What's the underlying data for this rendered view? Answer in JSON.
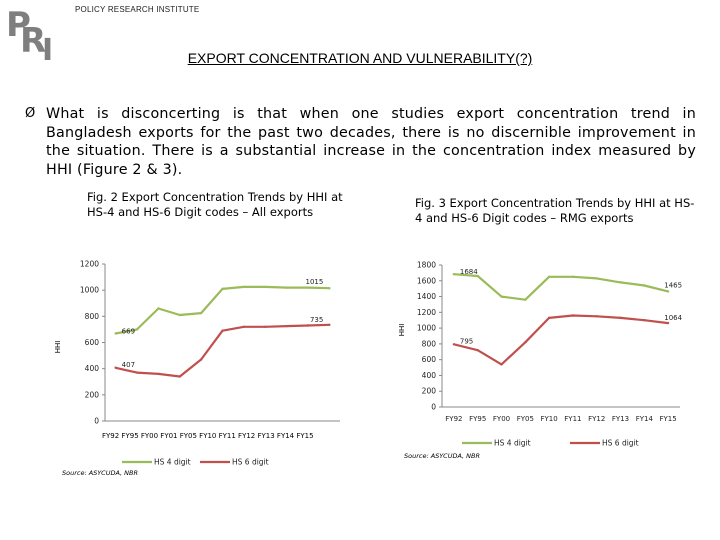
{
  "header": {
    "org_name": "POLICY RESEARCH INSTITUTE",
    "logo_text": "PRI",
    "slide_title": "EXPORT CONCENTRATION AND VULNERABILITY(?)"
  },
  "body": {
    "bullet_symbol": "Ø",
    "paragraph": "What is disconcerting is that when one studies export concentration trend in Bangladesh exports for the past two decades, there is no discernible improvement in the situation. There is a substantial increase in the concentration index measured by HHI (Figure 2 & 3)."
  },
  "colors": {
    "hs4": "#9bbb59",
    "hs6": "#c0504d",
    "axis": "#888888"
  },
  "chart_data": [
    {
      "type": "line",
      "caption": "Fig. 2 Export Concentration Trends by HHI at HS-4 and HS-6 Digit codes – All exports",
      "categories": [
        "FY92",
        "FY95",
        "FY00",
        "FY01",
        "FY05",
        "FY10",
        "FY11",
        "FY12",
        "FY13",
        "FY14",
        "FY15"
      ],
      "ylabel": "HHI",
      "ylim": [
        0,
        1200
      ],
      "yticks": [
        0,
        200,
        400,
        600,
        800,
        1000,
        1200
      ],
      "series": [
        {
          "name": "HS 4 digit",
          "values": [
            669,
            700,
            860,
            810,
            825,
            1010,
            1025,
            1025,
            1020,
            1020,
            1015
          ]
        },
        {
          "name": "HS 6 digit",
          "values": [
            407,
            370,
            360,
            340,
            470,
            690,
            720,
            720,
            725,
            730,
            735
          ]
        }
      ],
      "labels": [
        {
          "text": "669",
          "series": 0,
          "index": 0
        },
        {
          "text": "1015",
          "series": 0,
          "index": 10
        },
        {
          "text": "407",
          "series": 1,
          "index": 0
        },
        {
          "text": "735",
          "series": 1,
          "index": 10
        }
      ],
      "tick_label_text": "FY92 FY95 FY00 FY01 FY05 FY10 FY11 FY12 FY13 FY14 FY15",
      "source": "Source: ASYCUDA, NBR"
    },
    {
      "type": "line",
      "caption": "Fig. 3 Export Concentration Trends by HHI at HS-4 and HS-6 Digit codes – RMG exports",
      "categories": [
        "FY92",
        "FY95",
        "FY00",
        "FY05",
        "FY10",
        "FY11",
        "FY12",
        "FY13",
        "FY14",
        "FY15"
      ],
      "ylabel": "HHI",
      "ylim": [
        0,
        1800
      ],
      "yticks": [
        0,
        200,
        400,
        600,
        800,
        1000,
        1200,
        1400,
        1600,
        1800
      ],
      "series": [
        {
          "name": "HS 4 digit",
          "values": [
            1684,
            1660,
            1400,
            1360,
            1650,
            1650,
            1630,
            1580,
            1540,
            1465
          ]
        },
        {
          "name": "HS 6 digit",
          "values": [
            795,
            720,
            540,
            820,
            1130,
            1160,
            1150,
            1130,
            1100,
            1064
          ]
        }
      ],
      "labels": [
        {
          "text": "1684",
          "series": 0,
          "index": 0
        },
        {
          "text": "1465",
          "series": 0,
          "index": 9
        },
        {
          "text": "795",
          "series": 1,
          "index": 0
        },
        {
          "text": "1064",
          "series": 1,
          "index": 9
        }
      ],
      "source": "Source: ASYCUDA, NBR"
    }
  ]
}
